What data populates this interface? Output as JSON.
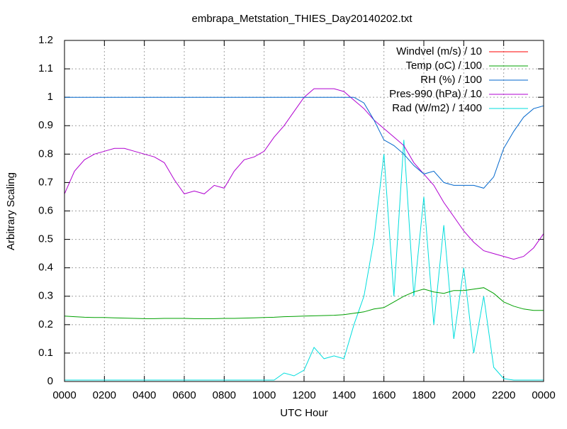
{
  "chart_data": {
    "type": "line",
    "title": "embrapa_Metstation_THIES_Day20140202.txt",
    "xlabel": "UTC Hour",
    "ylabel": "Arbitrary Scaling",
    "x": [
      0,
      0.5,
      1,
      1.5,
      2,
      2.5,
      3,
      3.5,
      4,
      4.5,
      5,
      5.5,
      6,
      6.5,
      7,
      7.5,
      8,
      8.5,
      9,
      9.5,
      10,
      10.5,
      11,
      11.5,
      12,
      12.5,
      13,
      13.5,
      14,
      14.5,
      15,
      15.5,
      16,
      16.5,
      17,
      17.5,
      18,
      18.5,
      19,
      19.5,
      20,
      20.5,
      21,
      21.5,
      22,
      22.5,
      23,
      23.5,
      24
    ],
    "series": [
      {
        "name": "Windvel (m/s) / 10",
        "color": "#ff0000",
        "values": [
          0,
          0,
          0,
          0,
          0,
          0,
          0,
          0,
          0,
          0,
          0,
          0,
          0,
          0,
          0,
          0,
          0,
          0,
          0,
          0,
          0,
          0,
          0,
          0,
          0,
          0,
          0,
          0,
          0,
          0,
          0,
          0,
          0,
          0,
          0,
          0,
          0,
          0,
          0,
          0,
          0,
          0,
          0,
          0,
          0,
          0,
          0,
          0,
          0
        ]
      },
      {
        "name": "Temp (oC) / 100",
        "color": "#00a000",
        "values": [
          0.23,
          0.228,
          0.226,
          0.225,
          0.225,
          0.224,
          0.223,
          0.222,
          0.221,
          0.221,
          0.222,
          0.222,
          0.222,
          0.221,
          0.221,
          0.221,
          0.222,
          0.222,
          0.223,
          0.224,
          0.225,
          0.226,
          0.228,
          0.229,
          0.23,
          0.231,
          0.232,
          0.233,
          0.235,
          0.24,
          0.245,
          0.255,
          0.26,
          0.28,
          0.3,
          0.315,
          0.325,
          0.315,
          0.31,
          0.32,
          0.32,
          0.325,
          0.33,
          0.31,
          0.28,
          0.265,
          0.255,
          0.25,
          0.25
        ]
      },
      {
        "name": "RH (%) / 100",
        "color": "#0066cc",
        "values": [
          1,
          1,
          1,
          1,
          1,
          1,
          1,
          1,
          1,
          1,
          1,
          1,
          1,
          1,
          1,
          1,
          1,
          1,
          1,
          1,
          1,
          1,
          1,
          1,
          1,
          1,
          1,
          1,
          1,
          1,
          0.98,
          0.92,
          0.85,
          0.83,
          0.8,
          0.76,
          0.73,
          0.74,
          0.7,
          0.69,
          0.69,
          0.69,
          0.68,
          0.72,
          0.82,
          0.88,
          0.93,
          0.96,
          0.97
        ]
      },
      {
        "name": "Pres-990 (hPa) / 10",
        "color": "#b000d0",
        "values": [
          0.66,
          0.74,
          0.78,
          0.8,
          0.81,
          0.82,
          0.82,
          0.81,
          0.8,
          0.79,
          0.77,
          0.71,
          0.66,
          0.67,
          0.66,
          0.69,
          0.68,
          0.74,
          0.78,
          0.79,
          0.81,
          0.86,
          0.9,
          0.95,
          1.0,
          1.03,
          1.03,
          1.03,
          1.02,
          0.99,
          0.96,
          0.92,
          0.89,
          0.86,
          0.83,
          0.77,
          0.73,
          0.69,
          0.63,
          0.58,
          0.53,
          0.49,
          0.46,
          0.45,
          0.44,
          0.43,
          0.44,
          0.47,
          0.52
        ]
      },
      {
        "name": "Rad (W/m2) / 1400",
        "color": "#00dddd",
        "values": [
          0.005,
          0.005,
          0.005,
          0.005,
          0.005,
          0.005,
          0.005,
          0.005,
          0.005,
          0.005,
          0.005,
          0.005,
          0.005,
          0.005,
          0.005,
          0.005,
          0.005,
          0.005,
          0.005,
          0.005,
          0.005,
          0.005,
          0.03,
          0.02,
          0.04,
          0.12,
          0.08,
          0.09,
          0.08,
          0.2,
          0.3,
          0.5,
          0.8,
          0.3,
          0.85,
          0.3,
          0.65,
          0.2,
          0.55,
          0.15,
          0.4,
          0.1,
          0.3,
          0.05,
          0.01,
          0.005,
          0.005,
          0.005,
          0.005
        ]
      }
    ],
    "xlim": [
      0,
      24
    ],
    "xticks": [
      {
        "value": 0,
        "label": "0000"
      },
      {
        "value": 2,
        "label": "0200"
      },
      {
        "value": 4,
        "label": "0400"
      },
      {
        "value": 6,
        "label": "0600"
      },
      {
        "value": 8,
        "label": "0800"
      },
      {
        "value": 10,
        "label": "1000"
      },
      {
        "value": 12,
        "label": "1200"
      },
      {
        "value": 14,
        "label": "1400"
      },
      {
        "value": 16,
        "label": "1600"
      },
      {
        "value": 18,
        "label": "1800"
      },
      {
        "value": 20,
        "label": "2000"
      },
      {
        "value": 22,
        "label": "2200"
      },
      {
        "value": 24,
        "label": "0000"
      }
    ],
    "ylim": [
      0,
      1.2
    ],
    "yticks": [
      0,
      0.1,
      0.2,
      0.3,
      0.4,
      0.5,
      0.6,
      0.7,
      0.8,
      0.9,
      1,
      1.1,
      1.2
    ],
    "grid": true,
    "legend": "top-right"
  }
}
